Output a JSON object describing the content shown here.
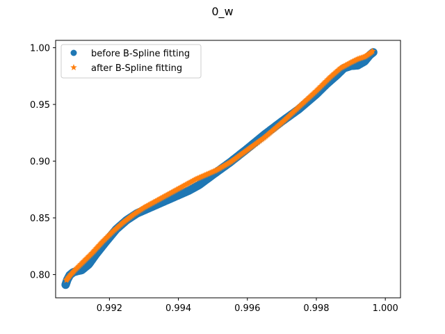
{
  "chart_data": {
    "type": "scatter",
    "title": "0_w",
    "xlabel": "",
    "ylabel": "",
    "xlim": [
      0.99044,
      1.00044
    ],
    "ylim": [
      0.7795,
      1.0065
    ],
    "x_ticks": [
      "0.992",
      "0.994",
      "0.996",
      "0.998",
      "1.000"
    ],
    "x_tick_values": [
      0.992,
      0.994,
      0.996,
      0.998,
      1.0
    ],
    "y_ticks": [
      "0.80",
      "0.85",
      "0.90",
      "0.95",
      "1.00"
    ],
    "y_tick_values": [
      0.8,
      0.85,
      0.9,
      0.95,
      1.0
    ],
    "grid": false,
    "legend_position": "top-left",
    "series": [
      {
        "name": "before B-Spline fitting",
        "marker": "circle",
        "color": "#1f77b4",
        "x": [
          0.99073,
          0.99078,
          0.99085,
          0.99095,
          0.99105,
          0.9912,
          0.9914,
          0.9916,
          0.9919,
          0.9922,
          0.9925,
          0.9928,
          0.9931,
          0.9934,
          0.9937,
          0.994,
          0.9943,
          0.9946,
          0.995,
          0.9955,
          0.996,
          0.9965,
          0.997,
          0.9975,
          0.998,
          0.9983,
          0.9986,
          0.9988,
          0.999,
          0.9992,
          0.9994,
          0.99955,
          0.99965
        ],
        "y": [
          0.791,
          0.7955,
          0.7995,
          0.802,
          0.803,
          0.804,
          0.809,
          0.8175,
          0.829,
          0.84,
          0.848,
          0.854,
          0.858,
          0.862,
          0.866,
          0.87,
          0.874,
          0.879,
          0.888,
          0.899,
          0.911,
          0.9235,
          0.935,
          0.946,
          0.959,
          0.968,
          0.976,
          0.982,
          0.984,
          0.9845,
          0.988,
          0.9935,
          0.996
        ]
      },
      {
        "name": "after B-Spline fitting",
        "marker": "star",
        "color": "#ff7f0e",
        "x": [
          0.99075,
          0.99085,
          0.991,
          0.9912,
          0.9915,
          0.9918,
          0.9921,
          0.9924,
          0.9927,
          0.993,
          0.9933,
          0.9936,
          0.9939,
          0.9942,
          0.9945,
          0.9948,
          0.9951,
          0.9955,
          0.996,
          0.9965,
          0.997,
          0.9975,
          0.998,
          0.9984,
          0.9987,
          0.999,
          0.9992,
          0.9994,
          0.99955,
          0.99963
        ],
        "y": [
          0.795,
          0.799,
          0.804,
          0.81,
          0.819,
          0.829,
          0.838,
          0.846,
          0.853,
          0.859,
          0.864,
          0.869,
          0.874,
          0.879,
          0.884,
          0.888,
          0.892,
          0.899,
          0.91,
          0.921,
          0.934,
          0.948,
          0.962,
          0.974,
          0.982,
          0.987,
          0.99,
          0.992,
          0.995,
          0.997
        ]
      }
    ]
  }
}
